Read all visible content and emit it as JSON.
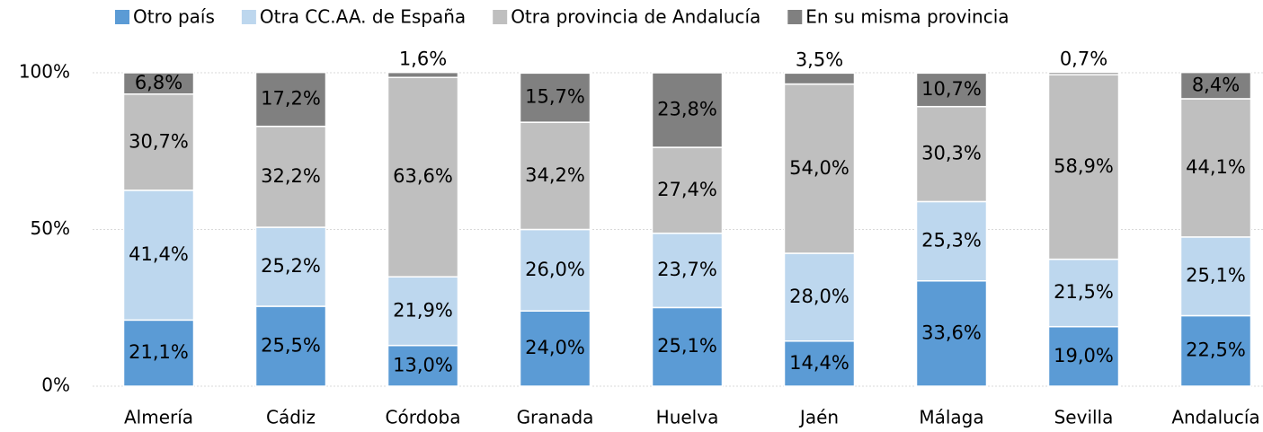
{
  "chart_data": {
    "type": "stacked_bar",
    "categories": [
      "Almería",
      "Cádiz",
      "Córdoba",
      "Granada",
      "Huelva",
      "Jaén",
      "Málaga",
      "Sevilla",
      "Andalucía"
    ],
    "series": [
      {
        "name": "Otro país",
        "color": "#5b9bd5",
        "values": [
          21.1,
          25.5,
          13.0,
          24.0,
          25.1,
          14.4,
          33.6,
          19.0,
          22.5
        ],
        "value_labels": [
          "21,1%",
          "25,5%",
          "13,0%",
          "24,0%",
          "25,1%",
          "14,4%",
          "33,6%",
          "19,0%",
          "22,5%"
        ]
      },
      {
        "name": "Otra CC.AA. de España",
        "color": "#bdd7ee",
        "values": [
          41.4,
          25.2,
          21.9,
          26.0,
          23.7,
          28.0,
          25.3,
          21.5,
          25.1
        ],
        "value_labels": [
          "41,4%",
          "25,2%",
          "21,9%",
          "26,0%",
          "23,7%",
          "28,0%",
          "25,3%",
          "21,5%",
          "25,1%"
        ]
      },
      {
        "name": "Otra provincia de Andalucía",
        "color": "#bfbfbf",
        "values": [
          30.7,
          32.2,
          63.6,
          34.2,
          27.4,
          54.0,
          30.3,
          58.9,
          44.1
        ],
        "value_labels": [
          "30,7%",
          "32,2%",
          "63,6%",
          "34,2%",
          "27,4%",
          "54,0%",
          "30,3%",
          "58,9%",
          "44,1%"
        ]
      },
      {
        "name": "En su misma provincia",
        "color": "#808080",
        "values": [
          6.8,
          17.2,
          1.6,
          15.7,
          23.8,
          3.5,
          10.7,
          0.7,
          8.4
        ],
        "value_labels": [
          "6,8%",
          "17,2%",
          "1,6%",
          "15,7%",
          "23,8%",
          "3,5%",
          "10,7%",
          "0,7%",
          "8,4%"
        ]
      }
    ],
    "ylim": [
      0,
      100
    ],
    "yticks": [
      {
        "value": 0,
        "label": "0%"
      },
      {
        "value": 50,
        "label": "50%"
      },
      {
        "value": 100,
        "label": "100%"
      }
    ],
    "grid": true,
    "legend": "top"
  }
}
